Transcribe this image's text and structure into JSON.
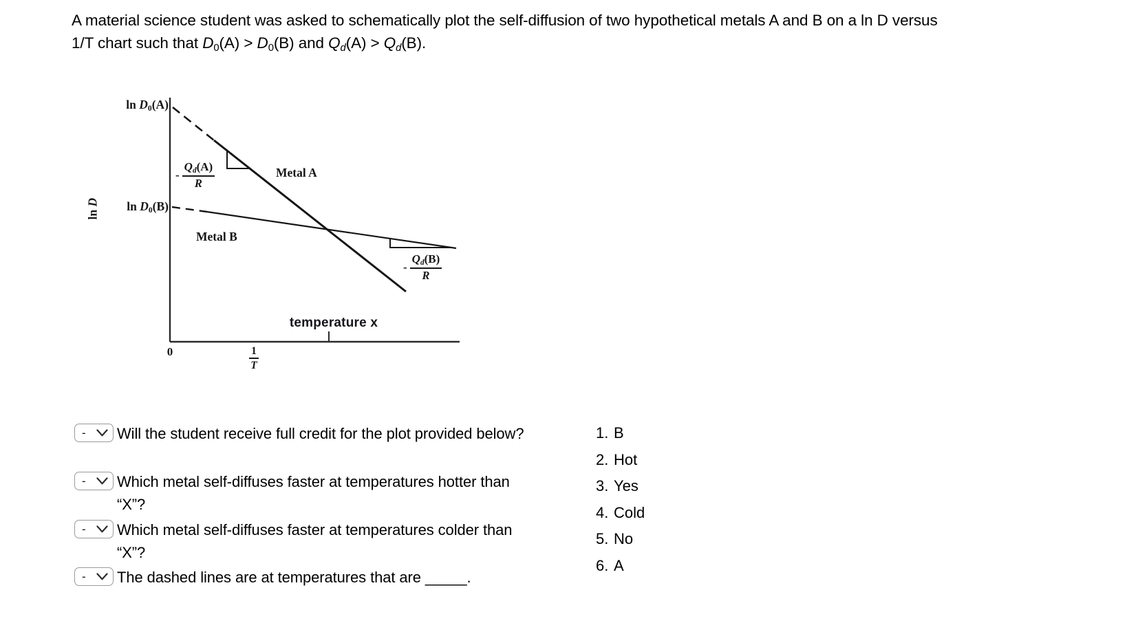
{
  "title": {
    "line1": "A material science student was asked to schematically plot the self-diffusion of two hypothetical metals A and B on a ln D versus",
    "line2_segments": [
      {
        "t": "1/T chart such that ",
        "s": ""
      },
      {
        "t": "D",
        "s": "i"
      },
      {
        "t": "0",
        "s": "sub"
      },
      {
        "t": "(A) > ",
        "s": ""
      },
      {
        "t": "D",
        "s": "i"
      },
      {
        "t": "0",
        "s": "sub"
      },
      {
        "t": "(B) and ",
        "s": ""
      },
      {
        "t": "Q",
        "s": "i"
      },
      {
        "t": "d",
        "s": "subi"
      },
      {
        "t": "(A) > ",
        "s": ""
      },
      {
        "t": "Q",
        "s": "i"
      },
      {
        "t": "d",
        "s": "subi"
      },
      {
        "t": "(B).",
        "s": ""
      }
    ]
  },
  "chart": {
    "y_axis_title_segments": [
      {
        "t": "ln ",
        "s": ""
      },
      {
        "t": "D",
        "s": "i"
      }
    ],
    "y_tick_a_segments": [
      {
        "t": "ln ",
        "s": ""
      },
      {
        "t": "D",
        "s": "i"
      },
      {
        "t": "0",
        "s": "sub"
      },
      {
        "t": "(A)",
        "s": ""
      }
    ],
    "y_tick_b_segments": [
      {
        "t": "ln ",
        "s": ""
      },
      {
        "t": "D",
        "s": "i"
      },
      {
        "t": "0",
        "s": "sub"
      },
      {
        "t": "(B)",
        "s": ""
      }
    ],
    "metal_a_label": "Metal A",
    "metal_b_label": "Metal B",
    "slope_a": {
      "minus": "-",
      "num_segments": [
        {
          "t": "Q",
          "s": "i"
        },
        {
          "t": "d",
          "s": "subi"
        },
        {
          "t": "(A)",
          "s": ""
        }
      ],
      "den": "R"
    },
    "slope_b": {
      "minus": "-",
      "num_segments": [
        {
          "t": "Q",
          "s": "i"
        },
        {
          "t": "d",
          "s": "subi"
        },
        {
          "t": "(B)",
          "s": ""
        }
      ],
      "den": "R"
    },
    "x_annotation": "temperature x",
    "origin_label": "0",
    "x_axis_frac": {
      "num": "1",
      "den": "T"
    },
    "line_color": "#161616",
    "axis_color": "#2b2b2b"
  },
  "chart_data": {
    "type": "line",
    "title": "",
    "xlabel": "1/T",
    "ylabel": "ln D",
    "axes_numeric": false,
    "x_tick_labels": [
      "0",
      "temperature x"
    ],
    "y_tick_labels": [
      "ln D0(B)",
      "ln D0(A)"
    ],
    "legend_position": "inline-labels",
    "grid": false,
    "series": [
      {
        "name": "Metal A",
        "y_intercept_label": "ln D0(A)",
        "slope_label": "-Qd(A)/R",
        "relative_slope": "steep",
        "dashed_until_x_frac": 0.15,
        "points_axis_fraction": [
          [
            0.01,
            0.97
          ],
          [
            0.15,
            0.83
          ],
          [
            0.54,
            0.46
          ],
          [
            0.8,
            0.21
          ]
        ]
      },
      {
        "name": "Metal B",
        "y_intercept_label": "ln D0(B)",
        "slope_label": "-Qd(B)/R",
        "relative_slope": "shallow",
        "dashed_until_x_frac": 0.13,
        "points_axis_fraction": [
          [
            0.01,
            0.55
          ],
          [
            0.13,
            0.53
          ],
          [
            0.54,
            0.46
          ],
          [
            0.98,
            0.38
          ]
        ]
      }
    ],
    "intersection": {
      "x_label": "temperature x",
      "x_frac": 0.54,
      "y_frac": 0.46
    }
  },
  "questions": [
    {
      "selected": "-",
      "text": "Will the student receive full credit for the plot provided below?"
    },
    {
      "selected": "-",
      "text": "Which metal self-diffuses faster at temperatures hotter than “X”?"
    },
    {
      "selected": "-",
      "text": "Which metal self-diffuses faster at temperatures colder than “X”?"
    },
    {
      "selected": "-",
      "text": "The dashed lines are at temperatures that are _____."
    }
  ],
  "answers": [
    {
      "num": "1.",
      "label": "B"
    },
    {
      "num": "2.",
      "label": "Hot"
    },
    {
      "num": "3.",
      "label": "Yes"
    },
    {
      "num": "4.",
      "label": "Cold"
    },
    {
      "num": "5.",
      "label": "No"
    },
    {
      "num": "6.",
      "label": "A"
    }
  ]
}
